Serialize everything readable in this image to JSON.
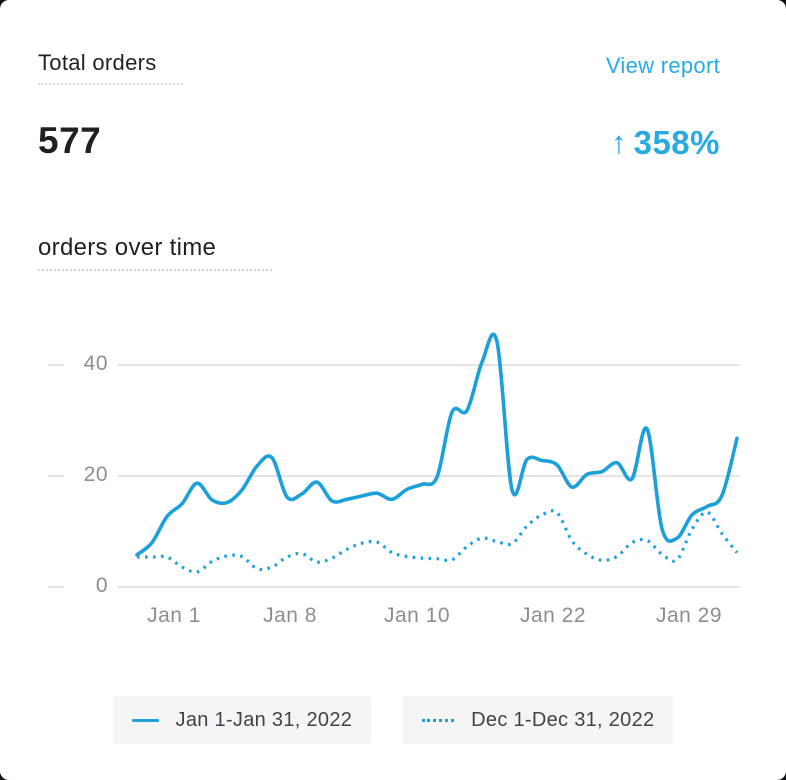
{
  "colors": {
    "accent": "#29abe2",
    "line": "#1ca0da",
    "ink": "#1d2126",
    "muted": "#8b8f93",
    "grid": "#e4e4e5",
    "legend_bg": "#f5f5f6",
    "legend_text": "#3f444a",
    "page_bg": "#101316"
  },
  "metric": {
    "label": "Total orders",
    "value": "577",
    "delta_arrow": "↑",
    "delta_value": "358%"
  },
  "view_report_label": "View report",
  "chart_title": "orders over time",
  "chart_data": {
    "type": "line",
    "title": "orders over time",
    "grid": true,
    "legend_position": "bottom",
    "ylim": [
      0,
      48
    ],
    "y_ticks": [
      40,
      20,
      0
    ],
    "x_tick_labels": [
      "Jan 1",
      "Jan 8",
      "Jan 10",
      "Jan 22",
      "Jan 29"
    ],
    "series": [
      {
        "name": "Jan 1-Jan 31, 2022",
        "style": "solid",
        "values": [
          5.8,
          8,
          12.7,
          15,
          18.7,
          15.7,
          15.2,
          17.5,
          21.8,
          23.3,
          16.2,
          16.8,
          18.9,
          15.5,
          15.8,
          16.4,
          16.9,
          15.8,
          17.6,
          18.5,
          19.8,
          31.5,
          31.8,
          40.5,
          44.2,
          17.5,
          23,
          22.8,
          22,
          18,
          20.3,
          20.8,
          22.4,
          19.5,
          28.5,
          10.5,
          8.8,
          13,
          14.5,
          16.5,
          26.8
        ]
      },
      {
        "name": "Dec 1-Dec 31, 2022",
        "style": "dotted",
        "values": [
          5.4,
          5.4,
          5.4,
          3.6,
          2.7,
          4.6,
          5.6,
          5.5,
          3.3,
          3.6,
          5.4,
          6,
          4.5,
          5.2,
          6.8,
          7.9,
          8.1,
          6.2,
          5.5,
          5.2,
          5.1,
          4.9,
          7.3,
          8.8,
          8.2,
          7.8,
          11,
          13,
          13.4,
          8.3,
          5.9,
          4.8,
          5.5,
          8,
          8.4,
          5.9,
          4.9,
          10.4,
          13.5,
          9.6,
          6.2
        ]
      }
    ]
  }
}
